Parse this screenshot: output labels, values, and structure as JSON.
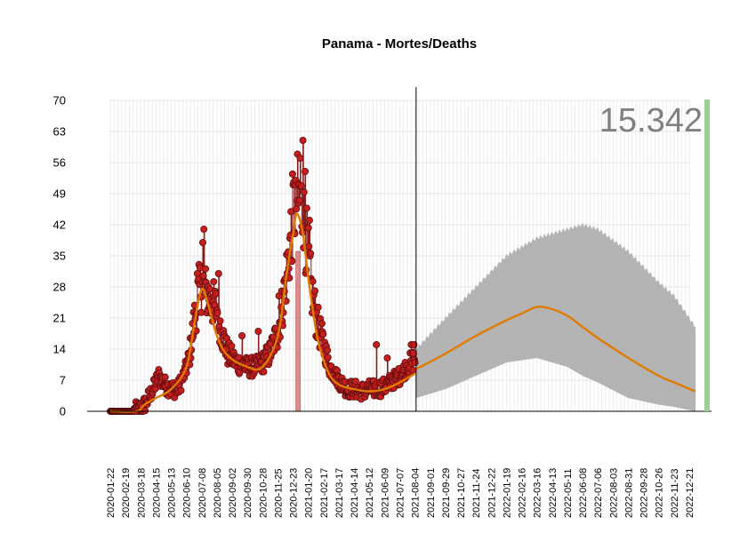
{
  "chart_data": {
    "type": "scatter",
    "title": "Panama - Mortes/Deaths",
    "ylim": [
      0,
      70
    ],
    "yticks": [
      0,
      7,
      14,
      21,
      28,
      35,
      42,
      49,
      56,
      63,
      70
    ],
    "xlim": [
      "2020-01-22",
      "2023-01-31"
    ],
    "xticks": [
      "2020-01-22",
      "2020-02-19",
      "2020-03-18",
      "2020-04-15",
      "2020-05-13",
      "2020-06-10",
      "2020-07-08",
      "2020-08-05",
      "2020-09-02",
      "2020-09-30",
      "2020-10-28",
      "2020-11-25",
      "2020-12-23",
      "2021-01-20",
      "2021-02-17",
      "2021-03-17",
      "2021-04-14",
      "2021-05-12",
      "2021-06-09",
      "2021-07-07",
      "2021-08-04",
      "2021-09-01",
      "2021-09-29",
      "2021-10-27",
      "2021-11-24",
      "2021-12-22",
      "2022-01-19",
      "2022-02-16",
      "2022-03-16",
      "2022-04-13",
      "2022-05-11",
      "2022-06-08",
      "2022-07-06",
      "2022-08-03",
      "2022-08-31",
      "2022-09-28",
      "2022-10-26",
      "2022-11-23",
      "2022-12-21"
    ],
    "grid": true,
    "forecast_start": "2021-08-06",
    "total_label": "15.342",
    "colors": {
      "points": "#c41e1e",
      "points_edge": "#5a0e0e",
      "stems": "#8b1a1a",
      "trend": "#e07b00",
      "band": "#b3b3b3",
      "highlight": "#d98080",
      "total_bar": "#9ccf94",
      "counter_text": "#808080"
    },
    "highlight_range": [
      "2020-12-28",
      "2021-01-05"
    ],
    "observed_trend": [
      [
        "2020-01-22",
        0
      ],
      [
        "2020-03-10",
        0
      ],
      [
        "2020-03-25",
        1.5
      ],
      [
        "2020-04-15",
        3
      ],
      [
        "2020-05-13",
        5
      ],
      [
        "2020-06-10",
        10
      ],
      [
        "2020-06-25",
        20
      ],
      [
        "2020-07-08",
        27.5
      ],
      [
        "2020-07-20",
        24
      ],
      [
        "2020-08-05",
        17
      ],
      [
        "2020-08-25",
        12.5
      ],
      [
        "2020-09-30",
        10
      ],
      [
        "2020-10-28",
        10
      ],
      [
        "2020-11-25",
        17
      ],
      [
        "2020-12-10",
        30
      ],
      [
        "2020-12-23",
        40
      ],
      [
        "2020-12-30",
        44.5
      ],
      [
        "2021-01-10",
        40
      ],
      [
        "2021-01-20",
        30
      ],
      [
        "2021-02-05",
        17
      ],
      [
        "2021-02-25",
        9
      ],
      [
        "2021-03-17",
        6
      ],
      [
        "2021-04-14",
        5
      ],
      [
        "2021-05-12",
        4.5
      ],
      [
        "2021-06-09",
        5
      ],
      [
        "2021-07-07",
        6.5
      ],
      [
        "2021-08-04",
        8.5
      ]
    ],
    "forecast_trend": [
      [
        "2021-08-06",
        9.5
      ],
      [
        "2021-09-29",
        13
      ],
      [
        "2021-11-24",
        17
      ],
      [
        "2022-01-19",
        20.5
      ],
      [
        "2022-02-16",
        22
      ],
      [
        "2022-03-16",
        23.5
      ],
      [
        "2022-04-13",
        23
      ],
      [
        "2022-05-11",
        21.5
      ],
      [
        "2022-06-08",
        19
      ],
      [
        "2022-07-06",
        16.5
      ],
      [
        "2022-08-31",
        12
      ],
      [
        "2022-10-26",
        8
      ],
      [
        "2022-11-23",
        6.5
      ],
      [
        "2023-01-01",
        4.5
      ]
    ],
    "forecast_band": [
      [
        "2021-08-06",
        3,
        14
      ],
      [
        "2021-09-29",
        5,
        21
      ],
      [
        "2021-11-24",
        8,
        28
      ],
      [
        "2022-01-19",
        11,
        35
      ],
      [
        "2022-03-16",
        12,
        39
      ],
      [
        "2022-05-11",
        10,
        41
      ],
      [
        "2022-06-08",
        8,
        42
      ],
      [
        "2022-07-06",
        6.5,
        41
      ],
      [
        "2022-08-31",
        3,
        36
      ],
      [
        "2022-10-26",
        1.5,
        29
      ],
      [
        "2022-11-23",
        1,
        26
      ],
      [
        "2023-01-01",
        0,
        19
      ]
    ],
    "observed_anchors": [
      [
        "2020-01-22",
        0
      ],
      [
        "2020-03-05",
        0
      ],
      [
        "2020-03-18",
        0.5
      ],
      [
        "2020-03-28",
        2
      ],
      [
        "2020-04-10",
        5
      ],
      [
        "2020-04-20",
        8
      ],
      [
        "2020-05-01",
        6
      ],
      [
        "2020-05-13",
        5
      ],
      [
        "2020-05-25",
        5
      ],
      [
        "2020-06-05",
        8
      ],
      [
        "2020-06-15",
        12
      ],
      [
        "2020-06-25",
        21
      ],
      [
        "2020-07-03",
        27
      ],
      [
        "2020-07-08",
        29
      ],
      [
        "2020-07-15",
        27
      ],
      [
        "2020-07-25",
        25
      ],
      [
        "2020-08-05",
        23
      ],
      [
        "2020-08-15",
        17
      ],
      [
        "2020-08-25",
        13
      ],
      [
        "2020-09-10",
        11
      ],
      [
        "2020-09-30",
        10
      ],
      [
        "2020-10-15",
        10
      ],
      [
        "2020-10-28",
        11
      ],
      [
        "2020-11-10",
        13
      ],
      [
        "2020-11-25",
        18
      ],
      [
        "2020-12-05",
        25
      ],
      [
        "2020-12-15",
        35
      ],
      [
        "2020-12-23",
        45
      ],
      [
        "2020-12-30",
        48
      ],
      [
        "2021-01-08",
        46
      ],
      [
        "2021-01-15",
        40
      ],
      [
        "2021-01-25",
        28
      ],
      [
        "2021-02-05",
        20
      ],
      [
        "2021-02-17",
        15
      ],
      [
        "2021-02-28",
        10
      ],
      [
        "2021-03-17",
        7
      ],
      [
        "2021-04-01",
        5
      ],
      [
        "2021-04-14",
        5
      ],
      [
        "2021-05-01",
        4.5
      ],
      [
        "2021-05-12",
        5
      ],
      [
        "2021-05-25",
        5
      ],
      [
        "2021-06-09",
        5.5
      ],
      [
        "2021-06-25",
        7
      ],
      [
        "2021-07-07",
        8
      ],
      [
        "2021-07-20",
        10
      ],
      [
        "2021-08-04",
        12
      ]
    ],
    "observed_peaks": [
      [
        "2020-07-12",
        41
      ],
      [
        "2020-07-10",
        38
      ],
      [
        "2020-06-30",
        31
      ],
      [
        "2020-08-08",
        31
      ],
      [
        "2021-01-10",
        61
      ],
      [
        "2021-01-05",
        57
      ],
      [
        "2020-12-28",
        52
      ],
      [
        "2020-12-27",
        51
      ],
      [
        "2021-01-14",
        54
      ],
      [
        "2021-01-22",
        43
      ],
      [
        "2020-12-20",
        34
      ],
      [
        "2020-11-27",
        26
      ],
      [
        "2020-09-20",
        17
      ],
      [
        "2020-10-20",
        18
      ],
      [
        "2021-06-14",
        12
      ],
      [
        "2021-05-25",
        15
      ],
      [
        "2021-07-28",
        15
      ],
      [
        "2021-08-02",
        15
      ]
    ]
  }
}
